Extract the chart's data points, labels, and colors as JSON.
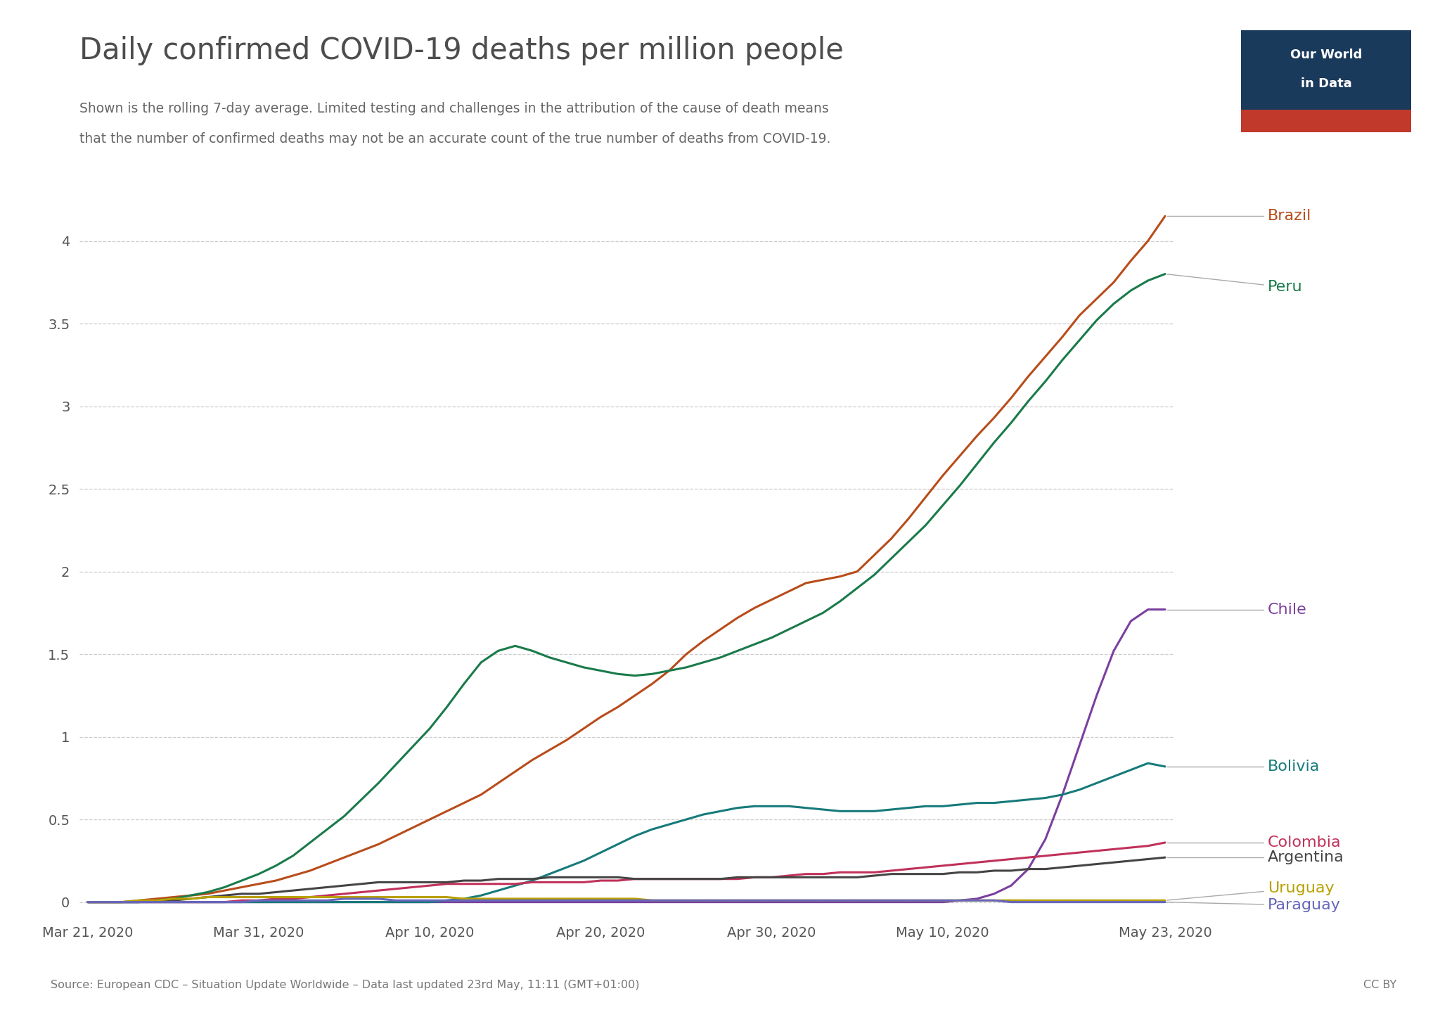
{
  "title": "Daily confirmed COVID-19 deaths per million people",
  "subtitle_line1": "Shown is the rolling 7-day average. Limited testing and challenges in the attribution of the cause of death means",
  "subtitle_line2": "that the number of confirmed deaths may not be an accurate count of the true number of deaths from COVID-19.",
  "source_text": "Source: European CDC – Situation Update Worldwide – Data last updated 23rd May, 11:11 (GMT+01:00)",
  "cc_text": "CC BY",
  "background_color": "#ffffff",
  "title_color": "#4d4d4d",
  "subtitle_color": "#666666",
  "ylim": [
    -0.08,
    4.35
  ],
  "ylabel_ticks": [
    0,
    0.5,
    1,
    1.5,
    2,
    2.5,
    3,
    3.5,
    4
  ],
  "countries": [
    "Brazil",
    "Peru",
    "Chile",
    "Bolivia",
    "Colombia",
    "Argentina",
    "Uruguay",
    "Paraguay"
  ],
  "colors": {
    "Brazil": "#b84c1a",
    "Peru": "#1a7a4a",
    "Chile": "#7b3f9e",
    "Bolivia": "#177a7a",
    "Colombia": "#c0315a",
    "Argentina": "#444444",
    "Uruguay": "#b8a000",
    "Paraguay": "#6666bb"
  },
  "dates": {
    "start": "2020-03-21",
    "end": "2020-05-23",
    "num_days": 64
  },
  "series": {
    "Brazil": [
      0.0,
      0.0,
      0.0,
      0.01,
      0.02,
      0.03,
      0.04,
      0.05,
      0.07,
      0.09,
      0.11,
      0.13,
      0.16,
      0.19,
      0.23,
      0.27,
      0.31,
      0.35,
      0.4,
      0.45,
      0.5,
      0.55,
      0.6,
      0.65,
      0.72,
      0.79,
      0.86,
      0.92,
      0.98,
      1.05,
      1.12,
      1.18,
      1.25,
      1.32,
      1.4,
      1.5,
      1.58,
      1.65,
      1.72,
      1.78,
      1.83,
      1.88,
      1.93,
      1.95,
      1.97,
      2.0,
      2.1,
      2.2,
      2.32,
      2.45,
      2.58,
      2.7,
      2.82,
      2.93,
      3.05,
      3.18,
      3.3,
      3.42,
      3.55,
      3.65,
      3.75,
      3.88,
      4.0,
      4.15
    ],
    "Peru": [
      0.0,
      0.0,
      0.0,
      0.0,
      0.01,
      0.02,
      0.04,
      0.06,
      0.09,
      0.13,
      0.17,
      0.22,
      0.28,
      0.36,
      0.44,
      0.52,
      0.62,
      0.72,
      0.83,
      0.94,
      1.05,
      1.18,
      1.32,
      1.45,
      1.52,
      1.55,
      1.52,
      1.48,
      1.45,
      1.42,
      1.4,
      1.38,
      1.37,
      1.38,
      1.4,
      1.42,
      1.45,
      1.48,
      1.52,
      1.56,
      1.6,
      1.65,
      1.7,
      1.75,
      1.82,
      1.9,
      1.98,
      2.08,
      2.18,
      2.28,
      2.4,
      2.52,
      2.65,
      2.78,
      2.9,
      3.03,
      3.15,
      3.28,
      3.4,
      3.52,
      3.62,
      3.7,
      3.76,
      3.8
    ],
    "Chile": [
      0.0,
      0.0,
      0.0,
      0.0,
      0.0,
      0.0,
      0.0,
      0.0,
      0.0,
      0.0,
      0.0,
      0.0,
      0.0,
      0.0,
      0.0,
      0.0,
      0.0,
      0.0,
      0.0,
      0.0,
      0.0,
      0.0,
      0.0,
      0.0,
      0.0,
      0.0,
      0.0,
      0.0,
      0.0,
      0.0,
      0.0,
      0.0,
      0.0,
      0.0,
      0.0,
      0.0,
      0.0,
      0.0,
      0.0,
      0.0,
      0.0,
      0.0,
      0.0,
      0.0,
      0.0,
      0.0,
      0.0,
      0.0,
      0.0,
      0.0,
      0.0,
      0.01,
      0.02,
      0.05,
      0.1,
      0.2,
      0.38,
      0.65,
      0.95,
      1.25,
      1.52,
      1.7,
      1.77,
      1.77
    ],
    "Bolivia": [
      0.0,
      0.0,
      0.0,
      0.0,
      0.0,
      0.0,
      0.0,
      0.0,
      0.0,
      0.0,
      0.0,
      0.0,
      0.0,
      0.0,
      0.0,
      0.0,
      0.0,
      0.0,
      0.0,
      0.0,
      0.0,
      0.01,
      0.02,
      0.04,
      0.07,
      0.1,
      0.13,
      0.17,
      0.21,
      0.25,
      0.3,
      0.35,
      0.4,
      0.44,
      0.47,
      0.5,
      0.53,
      0.55,
      0.57,
      0.58,
      0.58,
      0.58,
      0.57,
      0.56,
      0.55,
      0.55,
      0.55,
      0.56,
      0.57,
      0.58,
      0.58,
      0.59,
      0.6,
      0.6,
      0.61,
      0.62,
      0.63,
      0.65,
      0.68,
      0.72,
      0.76,
      0.8,
      0.84,
      0.82
    ],
    "Colombia": [
      0.0,
      0.0,
      0.0,
      0.0,
      0.0,
      0.0,
      0.0,
      0.0,
      0.0,
      0.01,
      0.01,
      0.02,
      0.02,
      0.03,
      0.04,
      0.05,
      0.06,
      0.07,
      0.08,
      0.09,
      0.1,
      0.11,
      0.11,
      0.11,
      0.11,
      0.11,
      0.12,
      0.12,
      0.12,
      0.12,
      0.13,
      0.13,
      0.14,
      0.14,
      0.14,
      0.14,
      0.14,
      0.14,
      0.14,
      0.15,
      0.15,
      0.16,
      0.17,
      0.17,
      0.18,
      0.18,
      0.18,
      0.19,
      0.2,
      0.21,
      0.22,
      0.23,
      0.24,
      0.25,
      0.26,
      0.27,
      0.28,
      0.29,
      0.3,
      0.31,
      0.32,
      0.33,
      0.34,
      0.36
    ],
    "Argentina": [
      0.0,
      0.0,
      0.0,
      0.0,
      0.01,
      0.01,
      0.02,
      0.03,
      0.04,
      0.05,
      0.05,
      0.06,
      0.07,
      0.08,
      0.09,
      0.1,
      0.11,
      0.12,
      0.12,
      0.12,
      0.12,
      0.12,
      0.13,
      0.13,
      0.14,
      0.14,
      0.14,
      0.15,
      0.15,
      0.15,
      0.15,
      0.15,
      0.14,
      0.14,
      0.14,
      0.14,
      0.14,
      0.14,
      0.15,
      0.15,
      0.15,
      0.15,
      0.15,
      0.15,
      0.15,
      0.15,
      0.16,
      0.17,
      0.17,
      0.17,
      0.17,
      0.18,
      0.18,
      0.19,
      0.19,
      0.2,
      0.2,
      0.21,
      0.22,
      0.23,
      0.24,
      0.25,
      0.26,
      0.27
    ],
    "Uruguay": [
      0.0,
      0.0,
      0.0,
      0.01,
      0.01,
      0.02,
      0.02,
      0.03,
      0.03,
      0.03,
      0.03,
      0.03,
      0.03,
      0.03,
      0.03,
      0.03,
      0.03,
      0.03,
      0.03,
      0.03,
      0.03,
      0.03,
      0.02,
      0.02,
      0.02,
      0.02,
      0.02,
      0.02,
      0.02,
      0.02,
      0.02,
      0.02,
      0.02,
      0.01,
      0.01,
      0.01,
      0.01,
      0.01,
      0.01,
      0.01,
      0.01,
      0.01,
      0.01,
      0.01,
      0.01,
      0.01,
      0.01,
      0.01,
      0.01,
      0.01,
      0.01,
      0.01,
      0.01,
      0.01,
      0.01,
      0.01,
      0.01,
      0.01,
      0.01,
      0.01,
      0.01,
      0.01,
      0.01,
      0.01
    ],
    "Paraguay": [
      0.0,
      0.0,
      0.0,
      0.0,
      0.0,
      0.0,
      0.0,
      0.0,
      0.0,
      0.0,
      0.01,
      0.01,
      0.01,
      0.01,
      0.01,
      0.02,
      0.02,
      0.02,
      0.01,
      0.01,
      0.01,
      0.01,
      0.01,
      0.01,
      0.01,
      0.01,
      0.01,
      0.01,
      0.01,
      0.01,
      0.01,
      0.01,
      0.01,
      0.01,
      0.01,
      0.01,
      0.01,
      0.01,
      0.01,
      0.01,
      0.01,
      0.01,
      0.01,
      0.01,
      0.01,
      0.01,
      0.01,
      0.01,
      0.01,
      0.01,
      0.01,
      0.01,
      0.01,
      0.01,
      0.0,
      0.0,
      0.0,
      0.0,
      0.0,
      0.0,
      0.0,
      0.0,
      0.0,
      0.0
    ]
  },
  "xtick_labels": [
    "Mar 21, 2020",
    "Mar 31, 2020",
    "Apr 10, 2020",
    "Apr 20, 2020",
    "Apr 30, 2020",
    "May 10, 2020",
    "May 23, 2020"
  ],
  "xtick_positions": [
    0,
    10,
    20,
    30,
    40,
    50,
    63
  ],
  "label_y_positions": {
    "Brazil": 4.15,
    "Peru": 3.72,
    "Chile": 1.77,
    "Bolivia": 0.82,
    "Colombia": 0.36,
    "Argentina": 0.27,
    "Uruguay": 0.085,
    "Paraguay": -0.02
  },
  "owid_box_color": "#1a3a5c",
  "owid_bar_color": "#c0392b"
}
